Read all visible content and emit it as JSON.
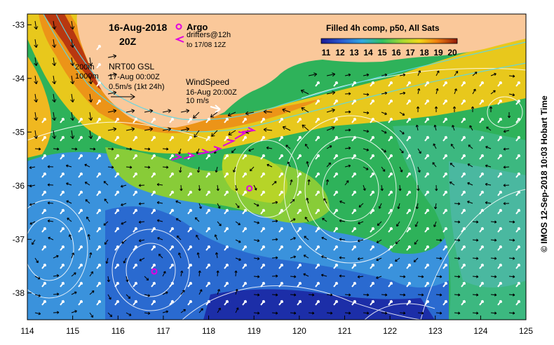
{
  "map": {
    "date": "16-Aug-2018",
    "time": "20Z",
    "argo_label": "Argo",
    "drifters_label": "drifters@12h",
    "drifters_range": "to 17/08 12Z",
    "isobath_200": "200m",
    "isobath_1000": "1000m",
    "current_product": "NRT00 GSL",
    "current_time": "17-Aug 00:00Z",
    "current_scale": "0.5m/s (1kt 24h)",
    "wind_label": "WindSpeed",
    "wind_time": "16-Aug 20:00Z",
    "wind_scale": "10 m/s",
    "sst_title": "Filled 4h comp, p50, All Sats",
    "colorbar_ticks": [
      "11",
      "12",
      "13",
      "14",
      "15",
      "16",
      "17",
      "18",
      "19",
      "20"
    ],
    "credit": "© IMOS 12-Sep-2018 10:03 Hobart Time",
    "x_ticks": [
      "114",
      "115",
      "116",
      "117",
      "118",
      "119",
      "120",
      "121",
      "122",
      "123",
      "124",
      "125"
    ],
    "y_ticks": [
      "-33",
      "-34",
      "-35",
      "-36",
      "-37",
      "-38"
    ],
    "colors": {
      "land": "#fac89a",
      "sst_11": "#1b1f9c",
      "sst_13": "#3a8ee0",
      "sst_15": "#22b54a",
      "sst_17": "#c8d820",
      "sst_19": "#e07a10",
      "sst_20": "#8a2a0c",
      "argo": "#e000e0",
      "contour": "#ffffff"
    },
    "argo_floats": [
      {
        "lon": 118.9,
        "lat": -36.05
      },
      {
        "lon": 116.8,
        "lat": -37.6
      }
    ]
  }
}
